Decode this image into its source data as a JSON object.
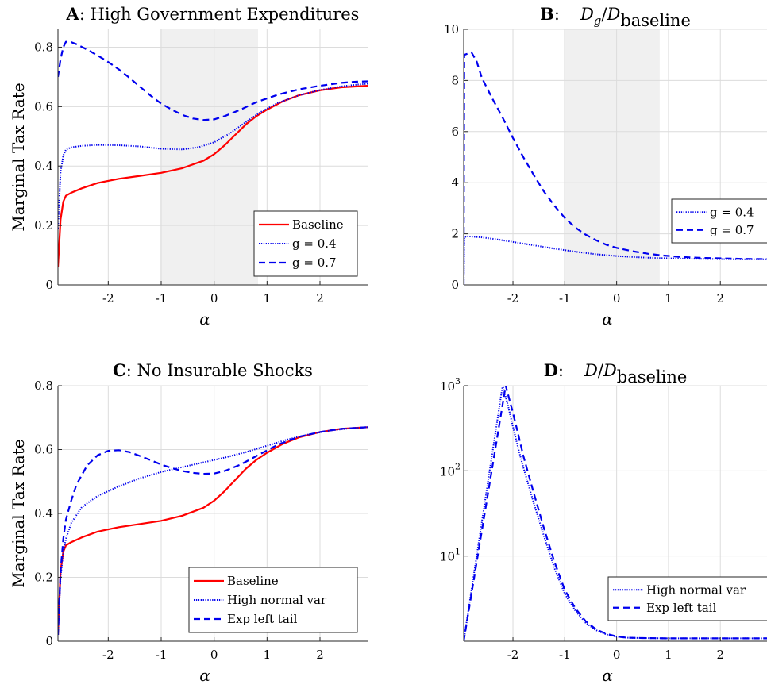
{
  "chart_data": [
    {
      "id": "A",
      "type": "line",
      "title": "A: High Government Expenditures",
      "xlabel": "α",
      "ylabel": "Marginal Tax Rate",
      "xlim": [
        -2.95,
        2.9
      ],
      "ylim": [
        0,
        0.86
      ],
      "yscale": "linear",
      "xticks": [
        -2,
        -1,
        0,
        1,
        2
      ],
      "xtick_labels": [
        "-2",
        "-1",
        "0",
        "1",
        "2"
      ],
      "yticks": [
        0,
        0.2,
        0.4,
        0.6,
        0.8
      ],
      "ytick_labels": [
        "0",
        "0.2",
        "0.4",
        "0.6",
        "0.8"
      ],
      "grid": true,
      "shaded_region": [
        -1.02,
        0.83
      ],
      "shade_color": "#f0f0f0",
      "legend_position": "lower-right",
      "series": [
        {
          "name": "Baseline",
          "color": "#ff0000",
          "style": "solid",
          "x": [
            -2.95,
            -2.9,
            -2.85,
            -2.8,
            -2.7,
            -2.5,
            -2.2,
            -1.8,
            -1.4,
            -1.0,
            -0.6,
            -0.2,
            0.0,
            0.2,
            0.4,
            0.6,
            0.8,
            1.0,
            1.3,
            1.6,
            2.0,
            2.4,
            2.7,
            2.9
          ],
          "y": [
            0.06,
            0.22,
            0.28,
            0.3,
            0.31,
            0.325,
            0.343,
            0.357,
            0.367,
            0.377,
            0.393,
            0.418,
            0.44,
            0.47,
            0.505,
            0.54,
            0.568,
            0.59,
            0.618,
            0.638,
            0.655,
            0.665,
            0.668,
            0.67
          ]
        },
        {
          "name": "g = 0.4",
          "color": "#0000ee",
          "style": "dotted",
          "x": [
            -2.95,
            -2.9,
            -2.85,
            -2.8,
            -2.7,
            -2.5,
            -2.2,
            -1.8,
            -1.4,
            -1.0,
            -0.6,
            -0.3,
            0.0,
            0.3,
            0.6,
            0.9,
            1.2,
            1.6,
            2.0,
            2.4,
            2.7,
            2.9
          ],
          "y": [
            0.19,
            0.38,
            0.435,
            0.455,
            0.463,
            0.468,
            0.471,
            0.47,
            0.466,
            0.458,
            0.456,
            0.463,
            0.48,
            0.51,
            0.548,
            0.584,
            0.612,
            0.638,
            0.656,
            0.668,
            0.674,
            0.677
          ]
        },
        {
          "name": "g = 0.7",
          "color": "#0000ee",
          "style": "dashed",
          "x": [
            -2.95,
            -2.9,
            -2.85,
            -2.8,
            -2.7,
            -2.6,
            -2.4,
            -2.2,
            -2.0,
            -1.8,
            -1.6,
            -1.4,
            -1.2,
            -1.0,
            -0.8,
            -0.6,
            -0.4,
            -0.2,
            0.0,
            0.2,
            0.5,
            0.8,
            1.2,
            1.6,
            2.0,
            2.4,
            2.7,
            2.9
          ],
          "y": [
            0.7,
            0.76,
            0.8,
            0.818,
            0.817,
            0.81,
            0.792,
            0.772,
            0.75,
            0.725,
            0.697,
            0.667,
            0.637,
            0.61,
            0.59,
            0.572,
            0.56,
            0.555,
            0.557,
            0.568,
            0.59,
            0.615,
            0.64,
            0.658,
            0.67,
            0.68,
            0.684,
            0.685
          ]
        }
      ]
    },
    {
      "id": "B",
      "type": "line",
      "title": "B:   D_g/D_baseline",
      "title_parts": {
        "prefix": "B",
        "sep": ":",
        "main": "D",
        "sub1": "g",
        "slash": "/",
        "main2": "D",
        "sub2": "baseline"
      },
      "xlabel": "α",
      "ylabel": "",
      "xlim": [
        -2.95,
        2.9
      ],
      "ylim": [
        0,
        10
      ],
      "yscale": "linear",
      "xticks": [
        -2,
        -1,
        0,
        1,
        2
      ],
      "xtick_labels": [
        "-2",
        "-1",
        "0",
        "1",
        "2"
      ],
      "yticks": [
        0,
        2,
        4,
        6,
        8,
        10
      ],
      "ytick_labels": [
        "0",
        "2",
        "4",
        "6",
        "8",
        "10"
      ],
      "grid": true,
      "shaded_region": [
        -1.02,
        0.83
      ],
      "shade_color": "#f0f0f0",
      "legend_position": "middle-right",
      "series": [
        {
          "name": "g = 0.4",
          "color": "#0000ee",
          "style": "dotted",
          "x": [
            -2.95,
            -2.94,
            -2.9,
            -2.8,
            -2.6,
            -2.3,
            -2.0,
            -1.6,
            -1.2,
            -0.8,
            -0.4,
            0.0,
            0.4,
            0.8,
            1.2,
            1.6,
            2.0,
            2.4,
            2.9
          ],
          "y": [
            0.0,
            1.85,
            1.9,
            1.89,
            1.86,
            1.78,
            1.68,
            1.55,
            1.42,
            1.3,
            1.2,
            1.13,
            1.08,
            1.05,
            1.03,
            1.02,
            1.01,
            1.0,
            1.0
          ]
        },
        {
          "name": "g = 0.7",
          "color": "#0000ee",
          "style": "dashed",
          "x": [
            -2.95,
            -2.94,
            -2.9,
            -2.8,
            -2.7,
            -2.6,
            -2.4,
            -2.2,
            -2.0,
            -1.8,
            -1.6,
            -1.4,
            -1.2,
            -1.0,
            -0.8,
            -0.6,
            -0.4,
            -0.2,
            0.0,
            0.3,
            0.6,
            0.9,
            1.2,
            1.6,
            2.0,
            2.4,
            2.9
          ],
          "y": [
            0.0,
            9.0,
            9.03,
            9.1,
            8.75,
            8.1,
            7.3,
            6.55,
            5.75,
            5.0,
            4.3,
            3.65,
            3.1,
            2.62,
            2.25,
            1.97,
            1.75,
            1.57,
            1.45,
            1.32,
            1.22,
            1.15,
            1.1,
            1.06,
            1.04,
            1.02,
            1.01
          ]
        }
      ]
    },
    {
      "id": "C",
      "type": "line",
      "title": "C: No Insurable Shocks",
      "xlabel": "α",
      "ylabel": "Marginal Tax Rate",
      "xlim": [
        -2.95,
        2.9
      ],
      "ylim": [
        0,
        0.8
      ],
      "yscale": "linear",
      "xticks": [
        -2,
        -1,
        0,
        1,
        2
      ],
      "xtick_labels": [
        "-2",
        "-1",
        "0",
        "1",
        "2"
      ],
      "yticks": [
        0,
        0.2,
        0.4,
        0.6,
        0.8
      ],
      "ytick_labels": [
        "0",
        "0.2",
        "0.4",
        "0.6",
        "0.8"
      ],
      "grid": true,
      "legend_position": "lower-right",
      "series": [
        {
          "name": "Baseline",
          "color": "#ff0000",
          "style": "solid",
          "x": [
            -2.95,
            -2.9,
            -2.85,
            -2.8,
            -2.7,
            -2.5,
            -2.2,
            -1.8,
            -1.4,
            -1.0,
            -0.6,
            -0.2,
            0.0,
            0.2,
            0.4,
            0.6,
            0.8,
            1.0,
            1.3,
            1.6,
            2.0,
            2.4,
            2.7,
            2.9
          ],
          "y": [
            0.02,
            0.22,
            0.28,
            0.3,
            0.31,
            0.325,
            0.343,
            0.357,
            0.367,
            0.377,
            0.393,
            0.418,
            0.44,
            0.47,
            0.505,
            0.54,
            0.568,
            0.59,
            0.618,
            0.638,
            0.655,
            0.665,
            0.668,
            0.67
          ]
        },
        {
          "name": "High normal var",
          "color": "#0000ee",
          "style": "dotted",
          "x": [
            -2.95,
            -2.9,
            -2.85,
            -2.8,
            -2.7,
            -2.5,
            -2.2,
            -1.8,
            -1.4,
            -1.0,
            -0.6,
            -0.2,
            0.2,
            0.6,
            1.0,
            1.4,
            1.8,
            2.2,
            2.6,
            2.9
          ],
          "y": [
            0.02,
            0.2,
            0.28,
            0.32,
            0.37,
            0.42,
            0.455,
            0.485,
            0.51,
            0.53,
            0.545,
            0.56,
            0.575,
            0.592,
            0.612,
            0.632,
            0.648,
            0.66,
            0.667,
            0.67
          ]
        },
        {
          "name": "Exp left tail",
          "color": "#0000ee",
          "style": "dashed",
          "x": [
            -2.95,
            -2.9,
            -2.85,
            -2.8,
            -2.7,
            -2.6,
            -2.4,
            -2.2,
            -2.0,
            -1.8,
            -1.6,
            -1.4,
            -1.2,
            -1.0,
            -0.8,
            -0.6,
            -0.4,
            -0.2,
            0.0,
            0.2,
            0.5,
            0.8,
            1.2,
            1.6,
            2.0,
            2.4,
            2.7,
            2.9
          ],
          "y": [
            0.02,
            0.22,
            0.32,
            0.38,
            0.44,
            0.49,
            0.55,
            0.582,
            0.596,
            0.598,
            0.592,
            0.58,
            0.567,
            0.553,
            0.542,
            0.533,
            0.527,
            0.524,
            0.525,
            0.533,
            0.553,
            0.58,
            0.615,
            0.64,
            0.655,
            0.665,
            0.668,
            0.67
          ]
        }
      ]
    },
    {
      "id": "D",
      "type": "line",
      "title": "D:   D/D_baseline",
      "title_parts": {
        "prefix": "D",
        "sep": ":",
        "main": "D",
        "sub1": "",
        "slash": "/",
        "main2": "D",
        "sub2": "baseline"
      },
      "xlabel": "α",
      "ylabel": "",
      "xlim": [
        -2.95,
        2.9
      ],
      "ylim": [
        1,
        1000
      ],
      "yscale": "log",
      "xticks": [
        -2,
        -1,
        0,
        1,
        2
      ],
      "xtick_labels": [
        "-2",
        "-1",
        "0",
        "1",
        "2"
      ],
      "yticks": [
        10,
        100,
        1000
      ],
      "ytick_labels": [
        {
          "base": "10",
          "exp": "1"
        },
        {
          "base": "10",
          "exp": "2"
        },
        {
          "base": "10",
          "exp": "3"
        }
      ],
      "grid": true,
      "legend_position": "lower-right",
      "series": [
        {
          "name": "High normal var",
          "color": "#0000ee",
          "style": "dotted",
          "x": [
            -2.95,
            -2.2,
            -2.1,
            -2.0,
            -1.9,
            -1.8,
            -1.6,
            -1.4,
            -1.2,
            -1.0,
            -0.8,
            -0.6,
            -0.4,
            -0.2,
            0.0,
            0.2,
            0.5,
            1.0,
            1.5,
            2.0,
            2.5,
            2.9
          ],
          "y": [
            1.0,
            1000,
            600,
            330,
            185,
            110,
            42,
            17,
            7.2,
            3.6,
            2.3,
            1.65,
            1.35,
            1.2,
            1.13,
            1.1,
            1.09,
            1.08,
            1.08,
            1.08,
            1.08,
            1.08
          ]
        },
        {
          "name": "Exp left tail",
          "color": "#0000ee",
          "style": "dashed",
          "x": [
            -2.95,
            -2.14,
            -2.0,
            -1.9,
            -1.8,
            -1.6,
            -1.4,
            -1.2,
            -1.0,
            -0.8,
            -0.6,
            -0.4,
            -0.2,
            0.0,
            0.2,
            0.5,
            1.0,
            1.5,
            2.0,
            2.5,
            2.9
          ],
          "y": [
            1.0,
            1000,
            480,
            270,
            150,
            55,
            21,
            8.5,
            4.0,
            2.45,
            1.72,
            1.38,
            1.22,
            1.14,
            1.1,
            1.09,
            1.08,
            1.08,
            1.08,
            1.08,
            1.08
          ]
        }
      ]
    }
  ]
}
